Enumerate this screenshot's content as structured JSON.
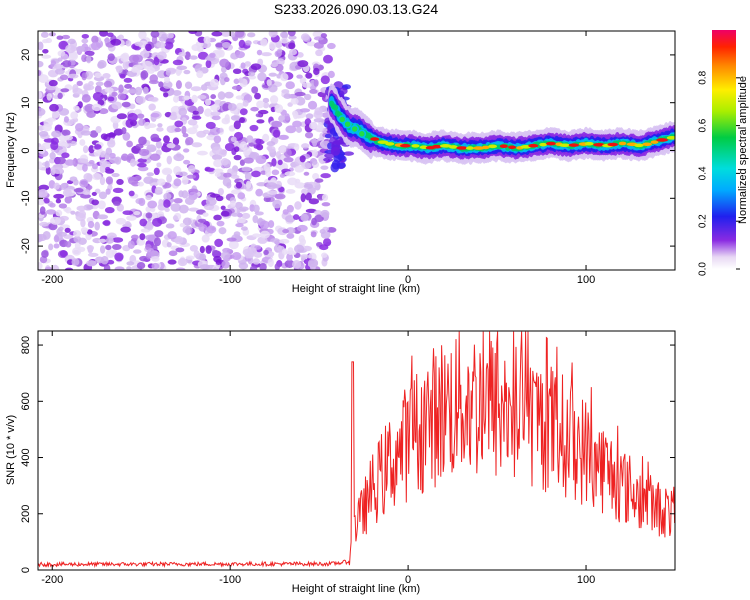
{
  "title": "S233.2026.090.03.13.G24",
  "chart_data": [
    {
      "type": "heatmap",
      "xlabel": "Height of straight line (km)",
      "ylabel": "Frequency (Hz)",
      "xlim": [
        -208,
        150
      ],
      "ylim": [
        -25,
        25
      ],
      "xticks": [
        -200,
        -100,
        0,
        100
      ],
      "yticks": [
        -20,
        -10,
        0,
        10,
        20
      ],
      "noise_region_x": [
        -208,
        -43
      ],
      "signal_ridge": {
        "x": [
          -43,
          -38,
          -33,
          -28,
          -23,
          -18,
          -13,
          -8,
          -3,
          2,
          10,
          20,
          30,
          40,
          50,
          60,
          70,
          80,
          90,
          100,
          110,
          120,
          130,
          140,
          150
        ],
        "frequency_hz": [
          10,
          7,
          5,
          4.5,
          3,
          2,
          1.5,
          1.2,
          1,
          1,
          0.5,
          1,
          0.5,
          0.5,
          1,
          0.5,
          1,
          1.5,
          1,
          1.5,
          1,
          1.5,
          1,
          2,
          3
        ]
      },
      "colorbar": {
        "label": "Normalized spectral amplitude",
        "range": [
          0,
          1
        ],
        "ticks": [
          0.0,
          0.2,
          0.4,
          0.6,
          0.8
        ]
      }
    },
    {
      "type": "line",
      "xlabel": "Height of straight line (km)",
      "ylabel": "SNR (10 * v/v)",
      "xlim": [
        -208,
        150
      ],
      "ylim": [
        0,
        850
      ],
      "xticks": [
        -200,
        -100,
        0,
        100
      ],
      "yticks": [
        0,
        200,
        400,
        600,
        800
      ],
      "series": [
        {
          "name": "SNR",
          "color": "#ee2222",
          "x": [
            -208,
            -43,
            -33,
            -31,
            -28,
            -20,
            -10,
            0,
            10,
            20,
            30,
            40,
            50,
            60,
            70,
            80,
            90,
            100,
            110,
            120,
            130,
            140,
            150
          ],
          "y": [
            20,
            22,
            30,
            140,
            180,
            300,
            400,
            480,
            550,
            600,
            630,
            620,
            600,
            580,
            560,
            530,
            490,
            440,
            380,
            320,
            270,
            230,
            210
          ]
        }
      ]
    }
  ]
}
